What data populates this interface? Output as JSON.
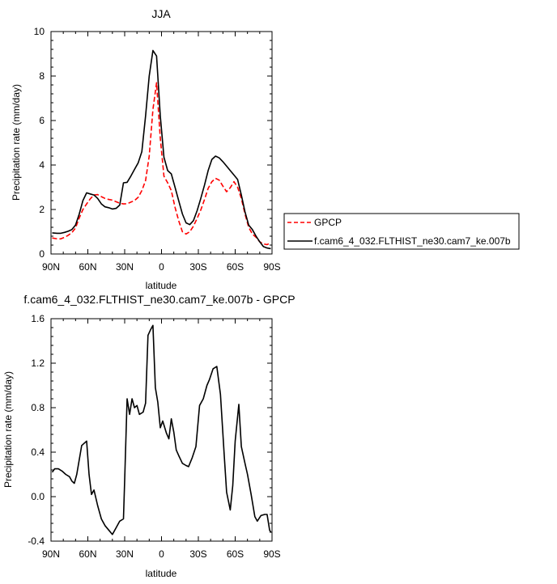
{
  "chart_data": [
    {
      "type": "line",
      "title": "JJA",
      "xlabel": "latitude",
      "ylabel": "Precipitation rate (mm/day)",
      "x_ticks": [
        {
          "value": 90,
          "label": "90N"
        },
        {
          "value": 60,
          "label": "60N"
        },
        {
          "value": 30,
          "label": "30N"
        },
        {
          "value": 0,
          "label": "0"
        },
        {
          "value": -30,
          "label": "30S"
        },
        {
          "value": -60,
          "label": "60S"
        },
        {
          "value": -90,
          "label": "90S"
        }
      ],
      "xlim": [
        90,
        -90
      ],
      "ylim": [
        0,
        10
      ],
      "y_ticks": [
        {
          "value": 0,
          "label": "0"
        },
        {
          "value": 2,
          "label": "2"
        },
        {
          "value": 4,
          "label": "4"
        },
        {
          "value": 6,
          "label": "6"
        },
        {
          "value": 8,
          "label": "8"
        },
        {
          "value": 10,
          "label": "10"
        }
      ],
      "grid": false,
      "legend_position": "outside-right",
      "series": [
        {
          "name": "GPCP",
          "color": "#ff0000",
          "dash": "dashed",
          "x": [
            89,
            85,
            82,
            79,
            76,
            73,
            70,
            67,
            64,
            61,
            58,
            55,
            52,
            49,
            46,
            43,
            40,
            37,
            34,
            31,
            28,
            25,
            22,
            19,
            16,
            13,
            10,
            7,
            4,
            1,
            -2,
            -5,
            -8,
            -11,
            -14,
            -17,
            -20,
            -23,
            -26,
            -29,
            -32,
            -35,
            -38,
            -41,
            -44,
            -47,
            -50,
            -53,
            -56,
            -59,
            -62,
            -65,
            -68,
            -71,
            -74,
            -77,
            -80,
            -83,
            -86,
            -89
          ],
          "y": [
            0.72,
            0.68,
            0.68,
            0.75,
            0.84,
            0.96,
            1.17,
            1.62,
            2.0,
            2.25,
            2.48,
            2.65,
            2.67,
            2.58,
            2.5,
            2.45,
            2.42,
            2.35,
            2.28,
            2.25,
            2.26,
            2.33,
            2.4,
            2.55,
            2.85,
            3.3,
            4.4,
            6.5,
            7.7,
            5.2,
            3.5,
            3.2,
            2.85,
            2.1,
            1.5,
            1.0,
            0.9,
            1.0,
            1.25,
            1.6,
            1.98,
            2.45,
            2.95,
            3.25,
            3.4,
            3.32,
            3.05,
            2.8,
            2.98,
            3.25,
            3.0,
            2.5,
            1.8,
            1.2,
            0.9,
            0.75,
            0.55,
            0.45,
            0.42,
            0.5
          ]
        },
        {
          "name": "f.cam6_4_032.FLTHIST_ne30.cam7_ke.007b",
          "color": "#000000",
          "dash": "solid",
          "x": [
            89,
            85,
            82,
            79,
            76,
            73,
            70,
            67,
            64,
            61,
            58,
            55,
            52,
            49,
            46,
            43,
            40,
            37,
            34,
            31,
            28,
            25,
            22,
            19,
            16,
            13,
            10,
            7,
            4,
            1,
            -2,
            -5,
            -8,
            -11,
            -14,
            -17,
            -20,
            -23,
            -26,
            -29,
            -32,
            -35,
            -38,
            -41,
            -44,
            -47,
            -50,
            -53,
            -56,
            -59,
            -62,
            -65,
            -68,
            -71,
            -74,
            -77,
            -80,
            -83,
            -86,
            -89
          ],
          "y": [
            0.95,
            0.93,
            0.93,
            0.97,
            1.02,
            1.1,
            1.3,
            1.8,
            2.4,
            2.75,
            2.7,
            2.65,
            2.5,
            2.25,
            2.12,
            2.08,
            2.02,
            2.05,
            2.2,
            3.2,
            3.22,
            3.5,
            3.8,
            4.1,
            4.6,
            6.2,
            8.0,
            9.15,
            8.9,
            6.2,
            4.35,
            3.75,
            3.6,
            3.0,
            2.4,
            1.8,
            1.4,
            1.32,
            1.5,
            1.95,
            2.5,
            3.1,
            3.75,
            4.25,
            4.4,
            4.32,
            4.15,
            3.95,
            3.75,
            3.55,
            3.35,
            2.65,
            1.9,
            1.3,
            1.1,
            0.8,
            0.55,
            0.33,
            0.27,
            0.24
          ]
        }
      ]
    },
    {
      "type": "line",
      "title": "f.cam6_4_032.FLTHIST_ne30.cam7_ke.007b - GPCP",
      "xlabel": "latitude",
      "ylabel": "Precipitation rate (mm/day)",
      "x_ticks": [
        {
          "value": 90,
          "label": "90N"
        },
        {
          "value": 60,
          "label": "60N"
        },
        {
          "value": 30,
          "label": "30N"
        },
        {
          "value": 0,
          "label": "0"
        },
        {
          "value": -30,
          "label": "30S"
        },
        {
          "value": -60,
          "label": "60S"
        },
        {
          "value": -90,
          "label": "90S"
        }
      ],
      "xlim": [
        90,
        -90
      ],
      "ylim": [
        -0.4,
        1.6
      ],
      "y_ticks": [
        {
          "value": -0.4,
          "label": "-0.4"
        },
        {
          "value": 0.0,
          "label": "0.0"
        },
        {
          "value": 0.4,
          "label": "0.4"
        },
        {
          "value": 0.8,
          "label": "0.8"
        },
        {
          "value": 1.2,
          "label": "1.2"
        },
        {
          "value": 1.6,
          "label": "1.6"
        }
      ],
      "grid": false,
      "series": [
        {
          "color": "#000000",
          "dash": "solid",
          "x": [
            89,
            87,
            84,
            81,
            78,
            75,
            73,
            71,
            69,
            65,
            61,
            59,
            57,
            55,
            52,
            49,
            46,
            43,
            40,
            37,
            34,
            31,
            30,
            28,
            26,
            24,
            22,
            20,
            18,
            15,
            13,
            11,
            9,
            7,
            5,
            3,
            1,
            -1,
            -4,
            -6,
            -8,
            -10,
            -12,
            -14,
            -17,
            -20,
            -22,
            -25,
            -28,
            -31,
            -34,
            -37,
            -39,
            -42,
            -45,
            -48,
            -51,
            -53,
            -56,
            -58,
            -60,
            -63,
            -65,
            -68,
            -70,
            -73,
            -76,
            -78,
            -81,
            -84,
            -86,
            -88,
            -89
          ],
          "y": [
            0.22,
            0.25,
            0.25,
            0.23,
            0.2,
            0.18,
            0.14,
            0.12,
            0.2,
            0.46,
            0.5,
            0.2,
            0.02,
            0.06,
            -0.08,
            -0.2,
            -0.26,
            -0.3,
            -0.34,
            -0.28,
            -0.22,
            -0.2,
            0.15,
            0.88,
            0.74,
            0.88,
            0.8,
            0.82,
            0.74,
            0.76,
            0.84,
            1.45,
            1.5,
            1.54,
            0.98,
            0.85,
            0.62,
            0.68,
            0.57,
            0.52,
            0.7,
            0.58,
            0.42,
            0.37,
            0.3,
            0.28,
            0.27,
            0.35,
            0.45,
            0.82,
            0.88,
            1.0,
            1.05,
            1.15,
            1.17,
            0.92,
            0.38,
            0.04,
            -0.12,
            0.1,
            0.5,
            0.83,
            0.45,
            0.3,
            0.2,
            0.02,
            -0.18,
            -0.22,
            -0.17,
            -0.16,
            -0.16,
            -0.3,
            -0.32
          ]
        }
      ]
    }
  ]
}
